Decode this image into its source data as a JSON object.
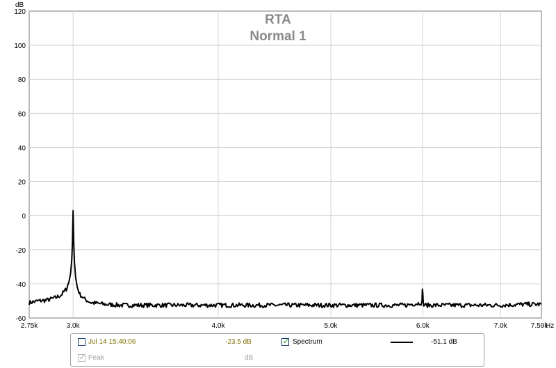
{
  "chart_data": {
    "type": "line",
    "title": "RTA",
    "subtitle": "Normal 1",
    "ylabel": "dB",
    "xunit": "Hz",
    "xscale": "log",
    "xlim": [
      2750,
      7590
    ],
    "ylim": [
      -60,
      120
    ],
    "grid": true,
    "x_ticks": [
      {
        "value": 2750,
        "label": "2.75k"
      },
      {
        "value": 3000,
        "label": "3.0k"
      },
      {
        "value": 4000,
        "label": "4.0k"
      },
      {
        "value": 5000,
        "label": "5.0k"
      },
      {
        "value": 6000,
        "label": "6.0k"
      },
      {
        "value": 7000,
        "label": "7.0k"
      },
      {
        "value": 7590,
        "label": "7.59k"
      }
    ],
    "y_ticks": [
      {
        "value": 120,
        "label": "120"
      },
      {
        "value": 100,
        "label": "100"
      },
      {
        "value": 80,
        "label": "80"
      },
      {
        "value": 60,
        "label": "60"
      },
      {
        "value": 40,
        "label": "40"
      },
      {
        "value": 20,
        "label": "20"
      },
      {
        "value": 0,
        "label": "0"
      },
      {
        "value": -20,
        "label": "-20"
      },
      {
        "value": -40,
        "label": "-40"
      },
      {
        "value": -60,
        "label": "-60"
      }
    ],
    "series": [
      {
        "color": "#000000",
        "x": [
          2750,
          2800,
          2850,
          2900,
          2930,
          2960,
          2975,
          2985,
          2992,
          2996,
          2998,
          3000,
          3002,
          3004,
          3008,
          3015,
          3025,
          3040,
          3070,
          3110,
          3200,
          3300,
          3500,
          3800,
          4000,
          4300,
          4600,
          5000,
          5400,
          5800,
          5990,
          5995,
          6000,
          6005,
          6010,
          6200,
          6500,
          7000,
          7300,
          7590
        ],
        "y": [
          -51,
          -50,
          -49.5,
          -48,
          -46.5,
          -43,
          -39,
          -34,
          -26,
          -16,
          -6,
          3,
          -6,
          -16,
          -27,
          -36,
          -42,
          -46,
          -49,
          -51,
          -52,
          -52.5,
          -52.5,
          -52.5,
          -52.5,
          -52.5,
          -52.5,
          -52.5,
          -52.5,
          -52.5,
          -51,
          -44,
          -44,
          -51,
          -52.5,
          -52.5,
          -52.5,
          -52.5,
          -52,
          -52
        ]
      }
    ]
  },
  "legend": {
    "row1": {
      "date_label": "Jul 14 15:40:06",
      "value": "-23.5 dB",
      "series_label": "Spectrum",
      "spectrum_checked": "✓",
      "series_value": "-51.1 dB"
    },
    "row2": {
      "peak_label": "Peak",
      "peak_checked": "✓",
      "unit": "dB"
    },
    "colors": {
      "date_text": "#807000",
      "value_text": "#807000",
      "disabled_text": "#a0a0a0",
      "check_green": "#1a8c1a"
    }
  }
}
